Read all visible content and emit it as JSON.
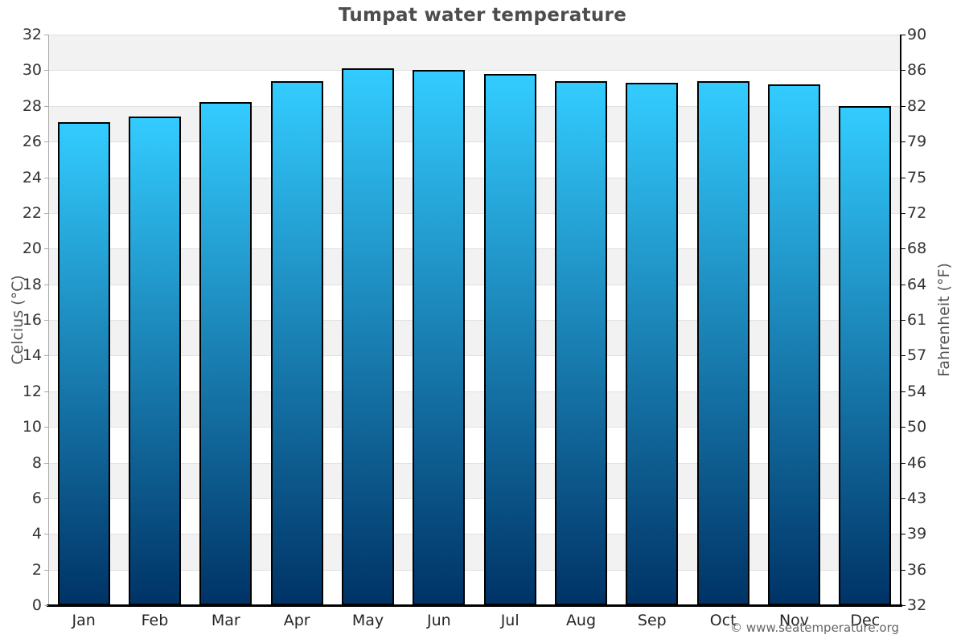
{
  "chart_data": {
    "type": "bar",
    "title": "Tumpat water temperature",
    "categories": [
      "Jan",
      "Feb",
      "Mar",
      "Apr",
      "May",
      "Jun",
      "Jul",
      "Aug",
      "Sep",
      "Oct",
      "Nov",
      "Dec"
    ],
    "series": [
      {
        "values": [
          27.1,
          27.4,
          28.2,
          29.4,
          30.1,
          30.0,
          29.8,
          29.4,
          29.3,
          29.4,
          29.2,
          28.0
        ]
      }
    ],
    "ylabel_left": "Celcius (°C)",
    "ylabel_right": "Fahrenheit (°F)",
    "ylim_left": [
      0,
      32
    ],
    "y_left_ticks_top_to_bottom": [
      32,
      30,
      28,
      26,
      24,
      22,
      20,
      18,
      16,
      14,
      12,
      10,
      8,
      6,
      4,
      2,
      0
    ],
    "y_right_ticks_top_to_bottom": [
      90,
      86,
      82,
      79,
      75,
      72,
      68,
      64,
      61,
      57,
      54,
      50,
      46,
      43,
      39,
      36,
      32
    ],
    "grid": "horizontal gridlines every 2°C with alternating gray/white bands, top band gray",
    "legend": "none"
  },
  "footer": {
    "credit": "© www.seatemperature.org"
  },
  "colors": {
    "bar_top": "#33ccff",
    "bar_bottom": "#003366",
    "bar_border": "#000000",
    "band_alt": "#f2f2f2",
    "grid_line": "#e0e0e0",
    "title_text": "#4d4d4d",
    "axis_text": "#333333",
    "axis_title_text": "#555555",
    "left_axis_line": "#aaaaaa",
    "right_axis_line": "#000000",
    "bottom_axis_line": "#000000",
    "footer_text": "#666666"
  }
}
